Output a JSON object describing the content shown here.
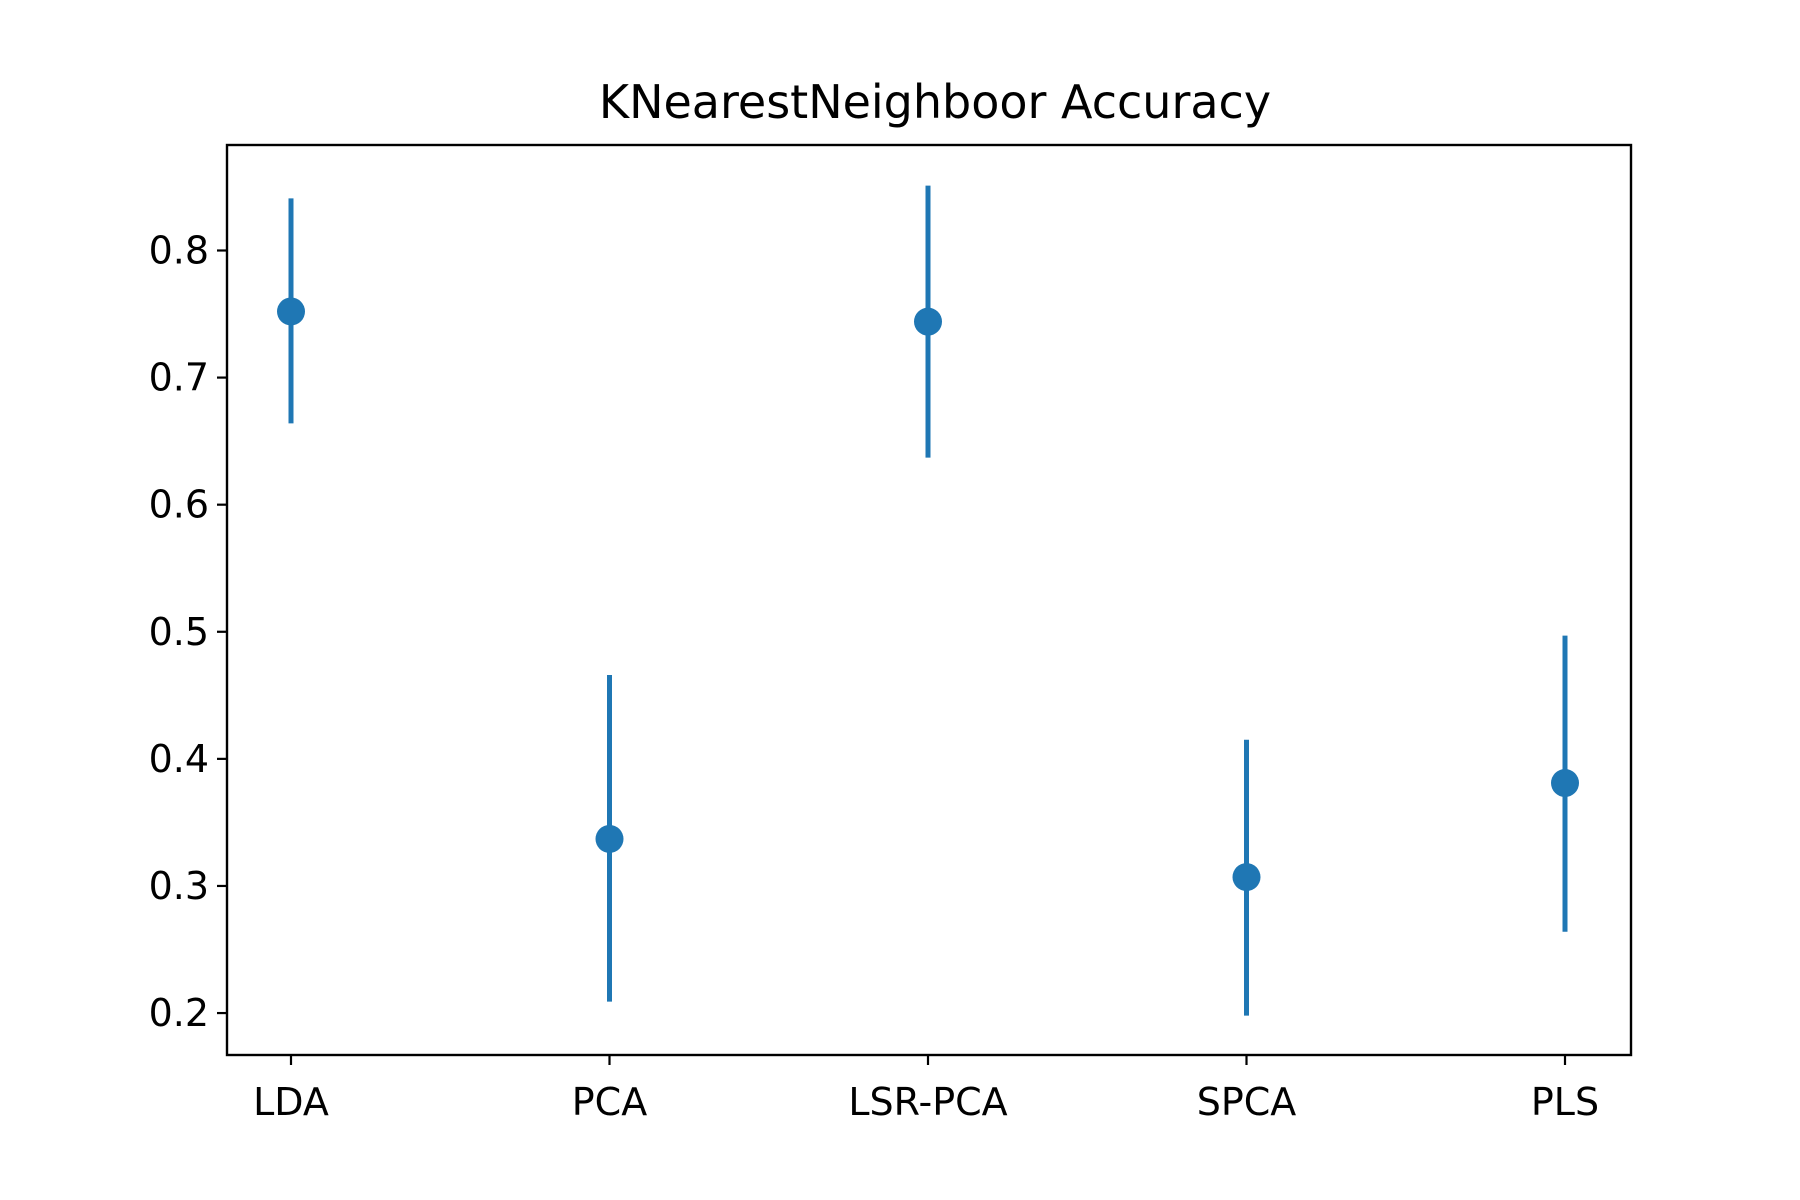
{
  "chart_data": {
    "type": "scatter",
    "title": "KNearestNeighboor Accuracy",
    "xlabel": "",
    "ylabel": "",
    "categories": [
      "LDA",
      "PCA",
      "LSR-PCA",
      "SPCA",
      "PLS"
    ],
    "values": [
      0.752,
      0.337,
      0.744,
      0.307,
      0.381
    ],
    "error_low": [
      0.664,
      0.209,
      0.637,
      0.198,
      0.264
    ],
    "error_high": [
      0.841,
      0.466,
      0.851,
      0.415,
      0.497
    ],
    "ylim": [
      0.167,
      0.883
    ],
    "yticks": [
      0.2,
      0.3,
      0.4,
      0.5,
      0.6,
      0.7,
      0.8
    ],
    "ytick_labels": [
      "0.2",
      "0.3",
      "0.4",
      "0.5",
      "0.6",
      "0.7",
      "0.8"
    ],
    "grid": false,
    "color": "#1f77b4"
  }
}
